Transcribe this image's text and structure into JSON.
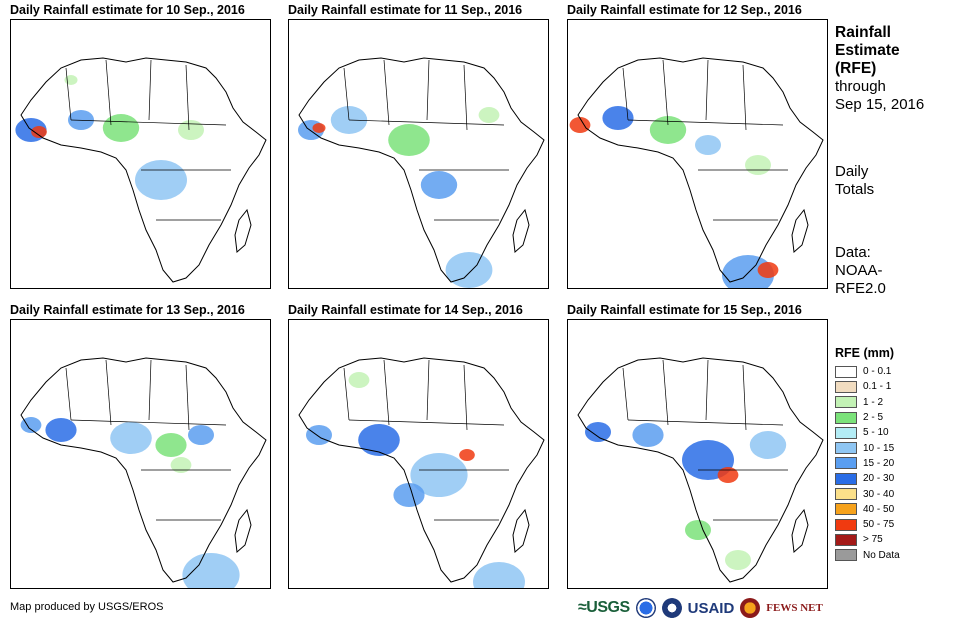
{
  "panels": [
    {
      "title": "Daily Rainfall estimate for 10 Sep., 2016"
    },
    {
      "title": "Daily Rainfall estimate for 11 Sep., 2016"
    },
    {
      "title": "Daily Rainfall estimate for 12 Sep., 2016"
    },
    {
      "title": "Daily Rainfall estimate for 13 Sep., 2016"
    },
    {
      "title": "Daily Rainfall estimate for 14 Sep., 2016"
    },
    {
      "title": "Daily Rainfall estimate for 15 Sep., 2016"
    }
  ],
  "sidebar": {
    "title_line1": "Rainfall",
    "title_line2": "Estimate",
    "title_line3": "(RFE)",
    "through_line1": "through",
    "through_line2": "Sep 15, 2016",
    "totals_line1": "Daily",
    "totals_line2": "Totals",
    "data_line1": "Data:",
    "data_line2": "NOAA-",
    "data_line3": "RFE2.0"
  },
  "legend": {
    "title": "RFE (mm)",
    "items": [
      {
        "label": "0 - 0.1",
        "color": "#ffffff"
      },
      {
        "label": "0.1 - 1",
        "color": "#f1dcc0"
      },
      {
        "label": "1 - 2",
        "color": "#c3f2b5"
      },
      {
        "label": "2 - 5",
        "color": "#7be27a"
      },
      {
        "label": "5 - 10",
        "color": "#b3ecf5"
      },
      {
        "label": "10 - 15",
        "color": "#8fc6f3"
      },
      {
        "label": "15 - 20",
        "color": "#5a9ef0"
      },
      {
        "label": "20 - 30",
        "color": "#2a6de6"
      },
      {
        "label": "30 - 40",
        "color": "#fbe08a"
      },
      {
        "label": "40 - 50",
        "color": "#f6a21c"
      },
      {
        "label": "50 - 75",
        "color": "#f03a10"
      },
      {
        "label": "> 75",
        "color": "#a41a18"
      },
      {
        "label": "No Data",
        "color": "#9a9a9a"
      }
    ]
  },
  "footer": {
    "credit": "Map produced by USGS/EROS",
    "logo_usgs": "≈USGS",
    "logo_usaid": "USAID",
    "logo_fews": "FEWS NET"
  }
}
